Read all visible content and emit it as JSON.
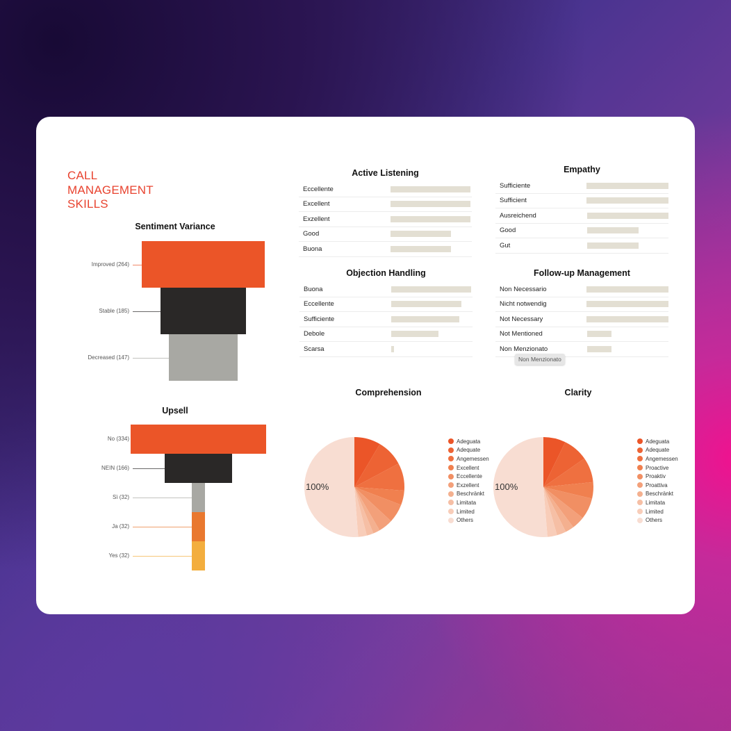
{
  "title": "CALL\nMANAGEMENT\nSKILLS",
  "title_lines": [
    "CALL",
    "MANAGEMENT",
    "SKILLS"
  ],
  "colors": {
    "accent": "#e8432f",
    "orange": "#eb5528",
    "dark": "#2a2827",
    "grey": "#a8a8a3",
    "amber": "#e9782f",
    "yellow": "#f3ae3e",
    "bar": "#e3dfd3"
  },
  "funnels": [
    {
      "title": "Sentiment Variance",
      "items": [
        {
          "label": "Improved (264)",
          "value": 264,
          "color": "#eb5528"
        },
        {
          "label": "Stable (185)",
          "value": 185,
          "color": "#2a2827"
        },
        {
          "label": "Decreased (147)",
          "value": 147,
          "color": "#a8a8a3"
        }
      ]
    },
    {
      "title": "Upsell",
      "items": [
        {
          "label": "No (334)",
          "value": 334,
          "color": "#eb5528"
        },
        {
          "label": "NEIN (166)",
          "value": 166,
          "color": "#2a2827"
        },
        {
          "label": "Sì (32)",
          "value": 32,
          "color": "#a8a8a3"
        },
        {
          "label": "Ja (32)",
          "value": 32,
          "color": "#e9782f"
        },
        {
          "label": "Yes (32)",
          "value": 32,
          "color": "#f3ae3e"
        }
      ]
    }
  ],
  "tables": [
    {
      "title": "Active Listening",
      "rows": [
        {
          "label": "Eccellente",
          "value": 1
        },
        {
          "label": "Excellent",
          "value": 1
        },
        {
          "label": "Exzellent",
          "value": 1
        },
        {
          "label": "Good",
          "value": 0.76
        },
        {
          "label": "Buona",
          "value": 0.76
        }
      ]
    },
    {
      "title": "Empathy",
      "rows": [
        {
          "label": "Sufficiente",
          "value": 1
        },
        {
          "label": "Sufficient",
          "value": 1
        },
        {
          "label": "Ausreichend",
          "value": 0.98
        },
        {
          "label": "Good",
          "value": 0.62
        },
        {
          "label": "Gut",
          "value": 0.62
        }
      ]
    },
    {
      "title": "Objection Handling",
      "rows": [
        {
          "label": "Buona",
          "value": 1
        },
        {
          "label": "Eccellente",
          "value": 0.88
        },
        {
          "label": "Sufficiente",
          "value": 0.85
        },
        {
          "label": "Debole",
          "value": 0.59
        },
        {
          "label": "Scarsa",
          "value": 0.035
        }
      ]
    },
    {
      "title": "Follow-up Management",
      "rows": [
        {
          "label": "Non Necessario",
          "value": 1
        },
        {
          "label": "Nicht notwendig",
          "value": 1
        },
        {
          "label": "Not Necessary",
          "value": 1
        },
        {
          "label": "Not Mentioned",
          "value": 0.29
        },
        {
          "label": "Non Menzionato",
          "value": 0.29
        }
      ]
    }
  ],
  "tooltip": "Non Menzionato",
  "chart_data": [
    {
      "type": "pie",
      "title": "Comprehension",
      "center_label": "100%",
      "labels": [
        "Adeguata",
        "Adequate",
        "Angemessen",
        "Excellent",
        "Eccellente",
        "Exzellent",
        "Beschränkt",
        "Limitata",
        "Limited",
        "Others"
      ],
      "values": [
        8.5,
        8.7,
        8.9,
        4.7,
        6.1,
        4.7,
        2.2,
        2.2,
        2.8,
        51.2
      ]
    },
    {
      "type": "pie",
      "title": "Clarity",
      "center_label": "100%",
      "labels": [
        "Adeguata",
        "Adequate",
        "Angemessen",
        "Proactive",
        "Proaktiv",
        "Proattiva",
        "Beschränkt",
        "Limitata",
        "Limited",
        "Others"
      ],
      "values": [
        7.2,
        8.1,
        8.1,
        5.3,
        6.9,
        4.2,
        2.8,
        3.0,
        3.1,
        51.3
      ]
    }
  ],
  "pie_colors": [
    "#eb5528",
    "#ed6334",
    "#ef7040",
    "#f0804f",
    "#f18f63",
    "#f3a07a",
    "#f4b08f",
    "#f6bfa5",
    "#f8cdb9",
    "#f8ddd2"
  ]
}
